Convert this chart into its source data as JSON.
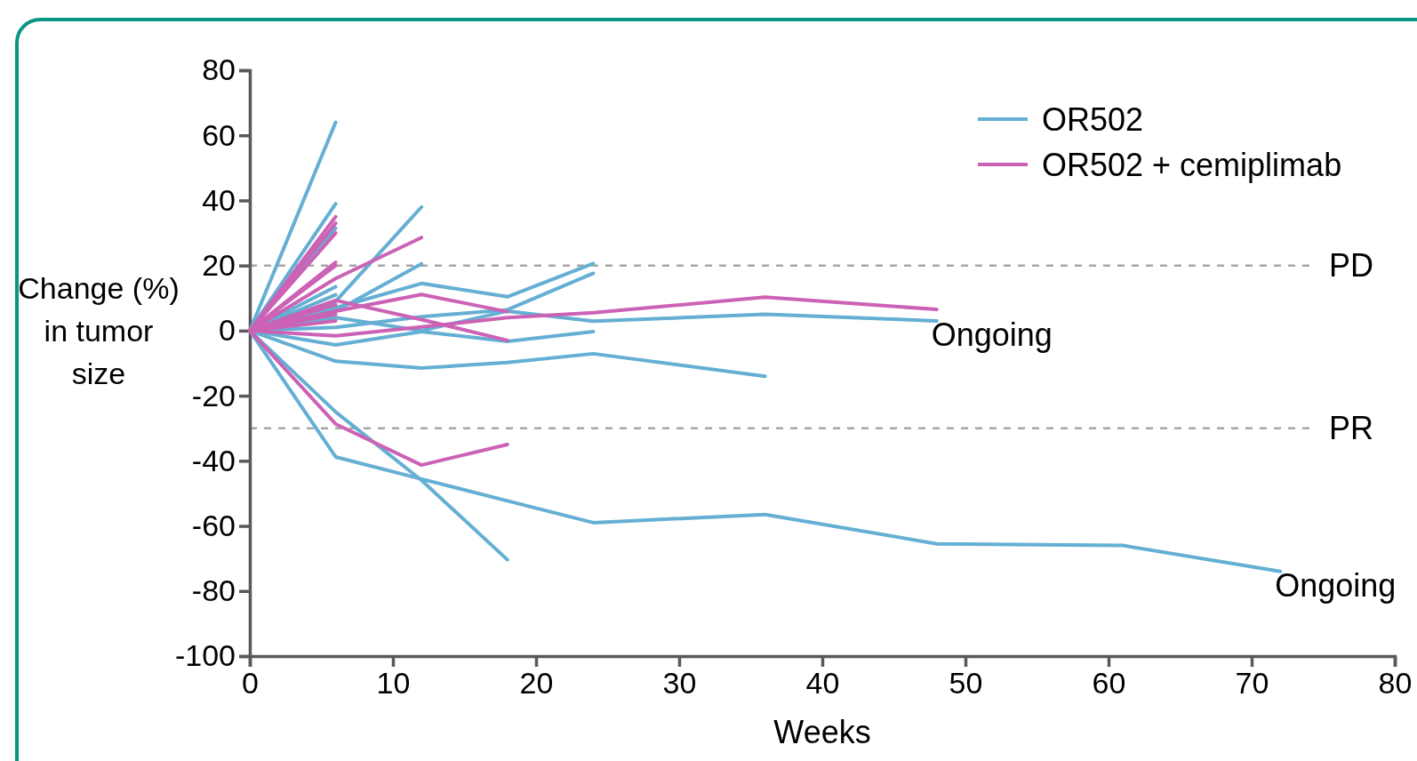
{
  "chart_data": {
    "type": "line",
    "xlabel": "Weeks",
    "ylabel": "Change (%) in tumor size",
    "xlim": [
      0,
      80
    ],
    "xticks": [
      0,
      10,
      20,
      30,
      40,
      50,
      60,
      70,
      80
    ],
    "ylim": [
      -100,
      80
    ],
    "yticks": [
      -100,
      -80,
      -60,
      -40,
      -20,
      0,
      20,
      40,
      60,
      80
    ],
    "grid": false,
    "legend": "top right",
    "marker": "none",
    "line_style": "solid",
    "ref_lines": [
      {
        "axis": "y",
        "value": 20,
        "label": "PD",
        "color": "#a6a6a6",
        "line_style": "dashed"
      },
      {
        "axis": "y",
        "value": -30,
        "label": "PR",
        "color": "#a6a6a6",
        "line_style": "dashed"
      }
    ],
    "annotations": [
      {
        "text": "Ongoing",
        "x": 48,
        "y": 3
      },
      {
        "text": "Ongoing",
        "x": 72,
        "y": -74
      }
    ],
    "series": [
      {
        "name": "OR502",
        "color": "#64afd3",
        "x": [
          0,
          6
        ],
        "values": [
          0,
          64
        ]
      },
      {
        "color": "#64afd3",
        "x": [
          0,
          6
        ],
        "values": [
          0,
          39
        ]
      },
      {
        "color": "#64afd3",
        "x": [
          0,
          6
        ],
        "values": [
          0,
          31.5
        ]
      },
      {
        "color": "#64afd3",
        "x": [
          0,
          6
        ],
        "values": [
          0,
          13.5
        ]
      },
      {
        "color": "#64afd3",
        "x": [
          0,
          6
        ],
        "values": [
          0,
          11
        ]
      },
      {
        "color": "#64afd3",
        "x": [
          0,
          6,
          12
        ],
        "values": [
          0,
          9,
          38
        ]
      },
      {
        "color": "#64afd3",
        "x": [
          0,
          6,
          12
        ],
        "values": [
          0,
          6,
          20.5
        ]
      },
      {
        "color": "#64afd3",
        "x": [
          0,
          6,
          12,
          18,
          24
        ],
        "values": [
          0,
          7,
          14.5,
          10.4,
          20.6
        ]
      },
      {
        "color": "#64afd3",
        "x": [
          0,
          6,
          12,
          18,
          24
        ],
        "values": [
          0,
          1,
          4.3,
          6.4,
          17.6
        ]
      },
      {
        "color": "#64afd3",
        "x": [
          0,
          6,
          12,
          18,
          24,
          36,
          48
        ],
        "values": [
          0,
          4,
          0,
          6,
          2.9,
          5,
          3
        ]
      },
      {
        "color": "#64afd3",
        "x": [
          0,
          6,
          12,
          18,
          24
        ],
        "values": [
          0,
          -4.4,
          -0.3,
          -3.3,
          -0.3
        ]
      },
      {
        "color": "#64afd3",
        "x": [
          0,
          6,
          12,
          18,
          24,
          36
        ],
        "values": [
          0,
          -9.4,
          -11.5,
          -9.8,
          -7.1,
          -14
        ]
      },
      {
        "color": "#64afd3",
        "x": [
          0,
          6,
          12,
          18,
          24,
          36,
          48,
          61,
          72
        ],
        "values": [
          0,
          -38.8,
          -45.6,
          -52.3,
          -59,
          -56.5,
          -65.5,
          -66,
          -74
        ]
      },
      {
        "color": "#64afd3",
        "x": [
          0,
          6,
          12,
          18
        ],
        "values": [
          0,
          -25,
          -46,
          -70.4
        ]
      },
      {
        "name": "OR502 + cemiplimab",
        "color": "#cc62b5",
        "x": [
          0,
          6
        ],
        "values": [
          0,
          35
        ]
      },
      {
        "color": "#cc62b5",
        "x": [
          0,
          6
        ],
        "values": [
          0,
          33
        ]
      },
      {
        "color": "#cc62b5",
        "x": [
          0,
          6
        ],
        "values": [
          0,
          30
        ]
      },
      {
        "color": "#cc62b5",
        "x": [
          0,
          6
        ],
        "values": [
          0,
          21
        ]
      },
      {
        "color": "#cc62b5",
        "x": [
          0,
          6
        ],
        "values": [
          0,
          20
        ]
      },
      {
        "color": "#cc62b5",
        "x": [
          0,
          6
        ],
        "values": [
          0,
          8
        ]
      },
      {
        "color": "#cc62b5",
        "x": [
          0,
          6
        ],
        "values": [
          0,
          5
        ]
      },
      {
        "color": "#cc62b5",
        "x": [
          0,
          6
        ],
        "values": [
          0,
          3
        ]
      },
      {
        "color": "#cc62b5",
        "x": [
          0,
          6,
          12
        ],
        "values": [
          0,
          16,
          28.6
        ]
      },
      {
        "color": "#cc62b5",
        "x": [
          0,
          6,
          12,
          18
        ],
        "values": [
          0,
          9.3,
          3.4,
          -3
        ]
      },
      {
        "color": "#cc62b5",
        "x": [
          0,
          6,
          12,
          18
        ],
        "values": [
          0,
          6,
          11.1,
          5.8
        ]
      },
      {
        "color": "#cc62b5",
        "x": [
          0,
          6,
          12,
          18,
          24,
          36,
          48
        ],
        "values": [
          0,
          -1.6,
          1.1,
          4,
          5.5,
          10.3,
          6.5
        ]
      },
      {
        "color": "#cc62b5",
        "x": [
          0,
          6,
          12,
          18
        ],
        "values": [
          0,
          -28.7,
          -41.3,
          -35
        ]
      }
    ]
  }
}
